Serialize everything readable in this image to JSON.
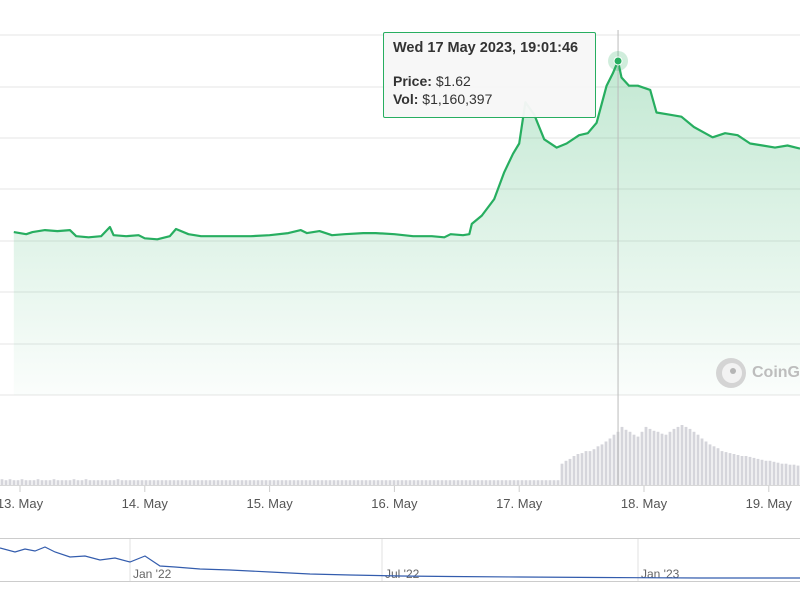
{
  "chart_data": {
    "type": "line",
    "title": "",
    "xlabel": "",
    "ylabel": "",
    "colors": {
      "price_line": "#27ae60",
      "area_fill": "#27ae60",
      "volume_bar": "#d5d5db",
      "navigator_line": "#335cad"
    },
    "x_ticks": [
      "13. May",
      "14. May",
      "15. May",
      "16. May",
      "17. May",
      "18. May",
      "19. May"
    ],
    "price_series": {
      "name": "Price",
      "points": [
        [
          12.95,
          0.79
        ],
        [
          13.05,
          0.78
        ],
        [
          13.1,
          0.79
        ],
        [
          13.2,
          0.8
        ],
        [
          13.3,
          0.795
        ],
        [
          13.4,
          0.8
        ],
        [
          13.45,
          0.77
        ],
        [
          13.55,
          0.765
        ],
        [
          13.65,
          0.77
        ],
        [
          13.72,
          0.815
        ],
        [
          13.75,
          0.775
        ],
        [
          13.85,
          0.77
        ],
        [
          13.95,
          0.775
        ],
        [
          14.0,
          0.76
        ],
        [
          14.1,
          0.755
        ],
        [
          14.2,
          0.77
        ],
        [
          14.25,
          0.805
        ],
        [
          14.35,
          0.78
        ],
        [
          14.45,
          0.77
        ],
        [
          14.55,
          0.77
        ],
        [
          14.75,
          0.77
        ],
        [
          14.85,
          0.77
        ],
        [
          15.0,
          0.775
        ],
        [
          15.15,
          0.785
        ],
        [
          15.25,
          0.8
        ],
        [
          15.3,
          0.785
        ],
        [
          15.4,
          0.795
        ],
        [
          15.5,
          0.775
        ],
        [
          15.6,
          0.78
        ],
        [
          15.75,
          0.785
        ],
        [
          15.85,
          0.785
        ],
        [
          16.0,
          0.78
        ],
        [
          16.15,
          0.77
        ],
        [
          16.3,
          0.77
        ],
        [
          16.4,
          0.765
        ],
        [
          16.45,
          0.78
        ],
        [
          16.55,
          0.775
        ],
        [
          16.6,
          0.78
        ],
        [
          16.62,
          0.83
        ],
        [
          16.7,
          0.87
        ],
        [
          16.8,
          0.95
        ],
        [
          16.88,
          1.08
        ],
        [
          16.95,
          1.17
        ],
        [
          17.0,
          1.22
        ],
        [
          17.05,
          1.42
        ],
        [
          17.12,
          1.36
        ],
        [
          17.2,
          1.24
        ],
        [
          17.3,
          1.2
        ],
        [
          17.38,
          1.22
        ],
        [
          17.48,
          1.26
        ],
        [
          17.55,
          1.27
        ],
        [
          17.62,
          1.32
        ],
        [
          17.7,
          1.5
        ],
        [
          17.75,
          1.56
        ],
        [
          17.792,
          1.62
        ],
        [
          17.82,
          1.54
        ],
        [
          17.88,
          1.5
        ],
        [
          17.95,
          1.5
        ],
        [
          18.05,
          1.48
        ],
        [
          18.1,
          1.37
        ],
        [
          18.2,
          1.36
        ],
        [
          18.3,
          1.35
        ],
        [
          18.4,
          1.3
        ],
        [
          18.55,
          1.25
        ],
        [
          18.65,
          1.27
        ],
        [
          18.75,
          1.26
        ],
        [
          18.85,
          1.22
        ],
        [
          18.95,
          1.21
        ],
        [
          19.05,
          1.2
        ],
        [
          19.15,
          1.21
        ],
        [
          19.25,
          1.195
        ]
      ]
    },
    "volume_series": {
      "name": "Vol",
      "values": [
        6,
        5,
        6,
        5,
        5,
        6,
        5,
        5,
        5,
        6,
        5,
        5,
        5,
        6,
        5,
        5,
        5,
        5,
        6,
        5,
        5,
        6,
        5,
        5,
        5,
        5,
        5,
        5,
        5,
        6,
        5,
        5,
        5,
        5,
        5,
        5,
        5,
        5,
        5,
        5,
        5,
        5,
        5,
        5,
        5,
        5,
        5,
        5,
        5,
        5,
        5,
        5,
        5,
        5,
        5,
        5,
        5,
        5,
        5,
        5,
        5,
        5,
        5,
        5,
        5,
        5,
        5,
        5,
        5,
        5,
        5,
        5,
        5,
        5,
        5,
        5,
        5,
        5,
        5,
        5,
        5,
        5,
        5,
        5,
        5,
        5,
        5,
        5,
        5,
        5,
        5,
        5,
        5,
        5,
        5,
        5,
        5,
        5,
        5,
        5,
        5,
        5,
        5,
        5,
        5,
        5,
        5,
        5,
        5,
        5,
        5,
        5,
        5,
        5,
        5,
        5,
        5,
        5,
        5,
        5,
        5,
        5,
        5,
        5,
        5,
        5,
        5,
        5,
        5,
        5,
        5,
        5,
        5,
        5,
        5,
        5,
        5,
        5,
        5,
        5,
        22,
        25,
        27,
        30,
        32,
        33,
        35,
        35,
        37,
        40,
        42,
        45,
        48,
        52,
        55,
        60,
        57,
        55,
        52,
        50,
        55,
        60,
        58,
        56,
        55,
        53,
        52,
        55,
        58,
        60,
        62,
        60,
        58,
        55,
        52,
        48,
        45,
        42,
        40,
        38,
        35,
        34,
        33,
        32,
        31,
        30,
        30,
        29,
        28,
        27,
        26,
        25,
        25,
        24,
        23,
        22,
        22,
        21,
        21,
        20
      ]
    },
    "tooltip": {
      "title": "Wed 17 May 2023, 19:01:46",
      "price_label": "Price:",
      "price_value": "$1.62",
      "vol_label": "Vol:",
      "vol_value": "$1,160,397"
    },
    "navigator": {
      "ticks": [
        "Jan '22",
        "Jul '22",
        "Jan '23"
      ]
    },
    "watermark": {
      "text": "CoinGe",
      "icon": "coingecko-logo-icon"
    }
  }
}
